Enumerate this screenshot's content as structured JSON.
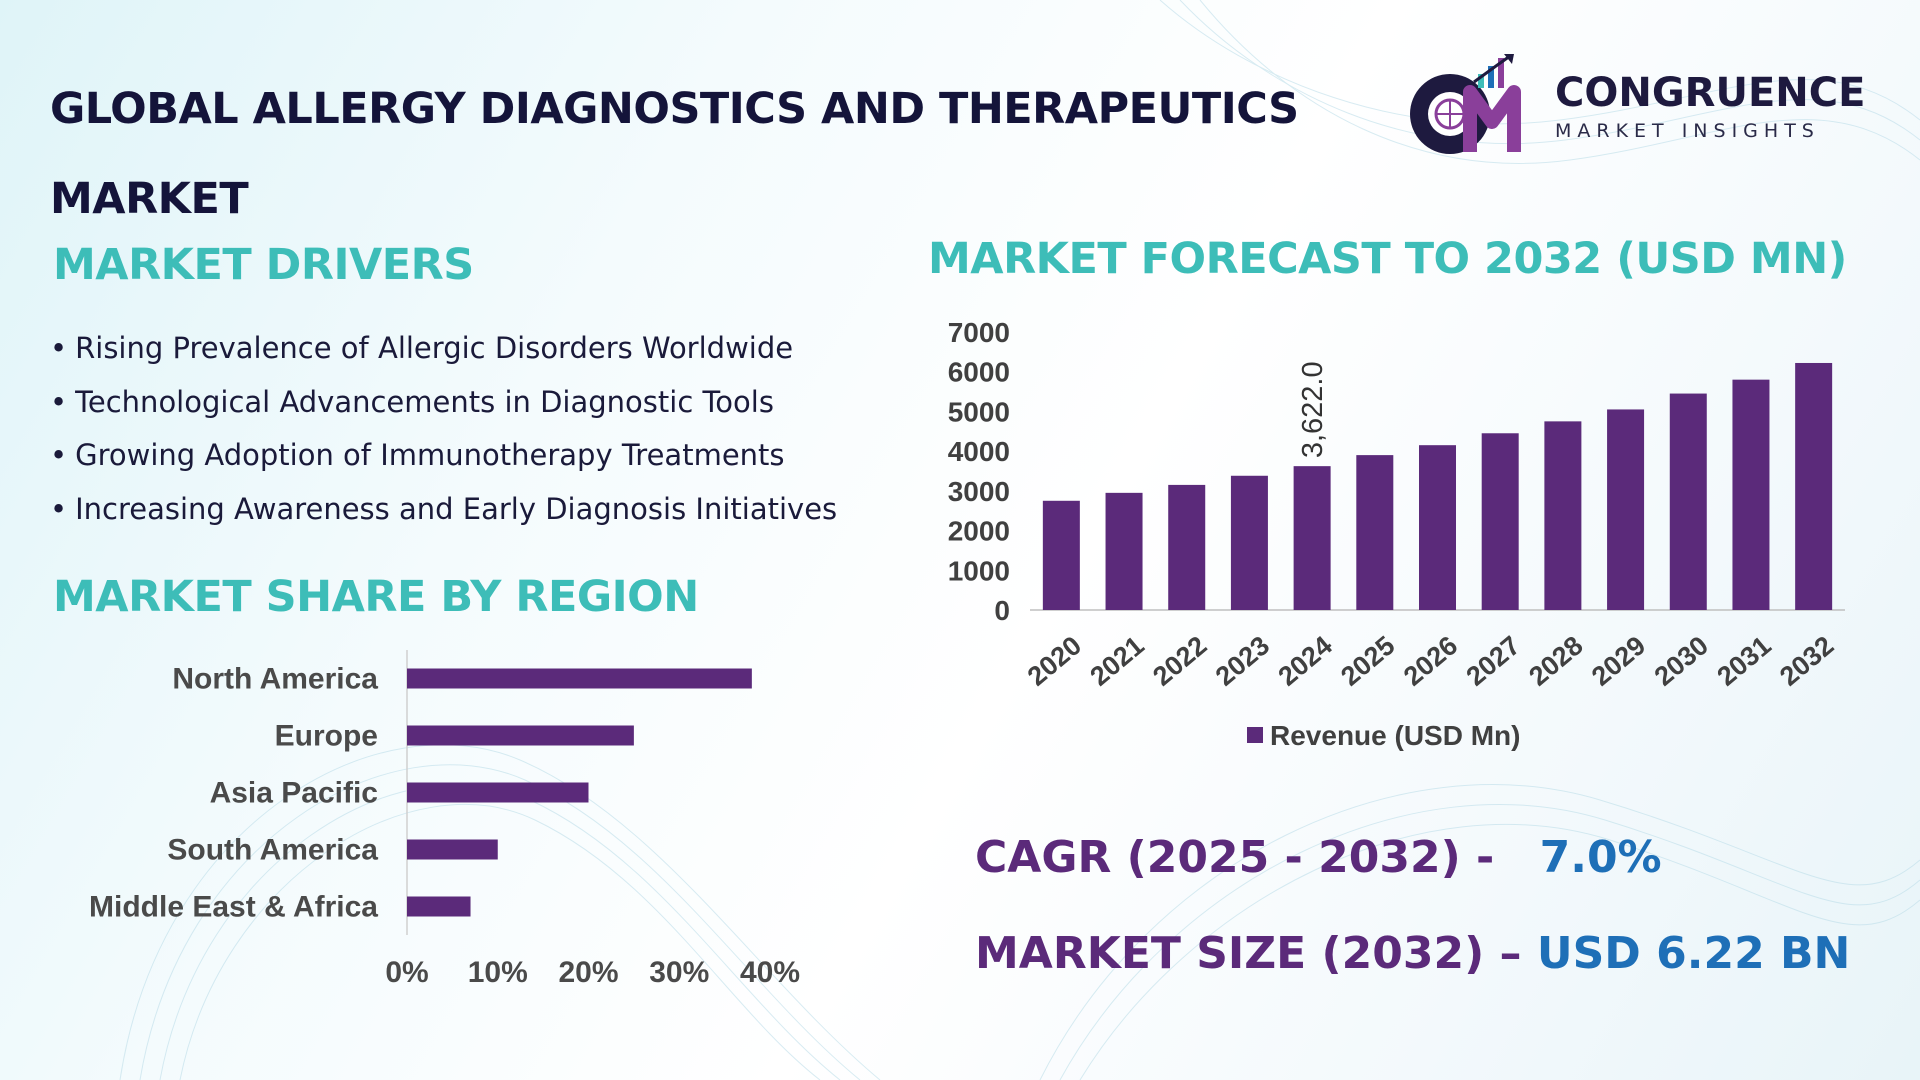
{
  "header": {
    "title": "GLOBAL ALLERGY DIAGNOSTICS AND THERAPEUTICS MARKET",
    "logo_name": "CONGRUENCE",
    "logo_sub": "MARKET INSIGHTS",
    "logo_mark": "CM"
  },
  "drivers": {
    "title": "MARKET DRIVERS",
    "bullet": "•",
    "items": [
      "Rising Prevalence of Allergic Disorders Worldwide",
      "Technological Advancements in Diagnostic Tools",
      "Growing Adoption of Immunotherapy Treatments",
      "Increasing Awareness and Early Diagnosis Initiatives"
    ]
  },
  "region_section": {
    "title": "MARKET SHARE BY REGION"
  },
  "forecast_section": {
    "title": "MARKET FORECAST TO 2032 (USD MN)"
  },
  "stats": {
    "cagr_label": "CAGR (2025 - 2032) -",
    "cagr_value": "7.0%",
    "size_label": "MARKET SIZE (2032) –",
    "size_value": "USD 6.22 BN"
  },
  "colors": {
    "accent_teal": "#3dbdb8",
    "bar_purple": "#5b2a7a",
    "stat_blue": "#1e6fb7",
    "navy": "#14143a"
  },
  "chart_data": [
    {
      "type": "bar",
      "orientation": "vertical",
      "title": "MARKET FORECAST TO 2032 (USD MN)",
      "categories": [
        "2020",
        "2021",
        "2022",
        "2023",
        "2024",
        "2025",
        "2026",
        "2027",
        "2028",
        "2029",
        "2030",
        "2031",
        "2032"
      ],
      "series": [
        {
          "name": "Revenue (USD Mn)",
          "values": [
            2750,
            2950,
            3150,
            3380,
            3622,
            3900,
            4150,
            4450,
            4750,
            5050,
            5450,
            5800,
            6220
          ]
        }
      ],
      "yticks": [
        0,
        1000,
        2000,
        3000,
        4000,
        5000,
        6000,
        7000
      ],
      "ylim": [
        0,
        7000
      ],
      "data_labels": [
        {
          "index": 4,
          "text": "3,622.0"
        }
      ],
      "legend": "bottom-center",
      "grid": false
    },
    {
      "type": "bar",
      "orientation": "horizontal",
      "title": "MARKET SHARE BY REGION",
      "categories": [
        "North America",
        "Europe",
        "Asia Pacific",
        "South America",
        "Middle East & Africa"
      ],
      "values": [
        38,
        25,
        20,
        10,
        7
      ],
      "unit": "%",
      "xticks": [
        "0%",
        "10%",
        "20%",
        "30%",
        "40%"
      ],
      "xlim": [
        0,
        40
      ],
      "grid": false
    }
  ]
}
